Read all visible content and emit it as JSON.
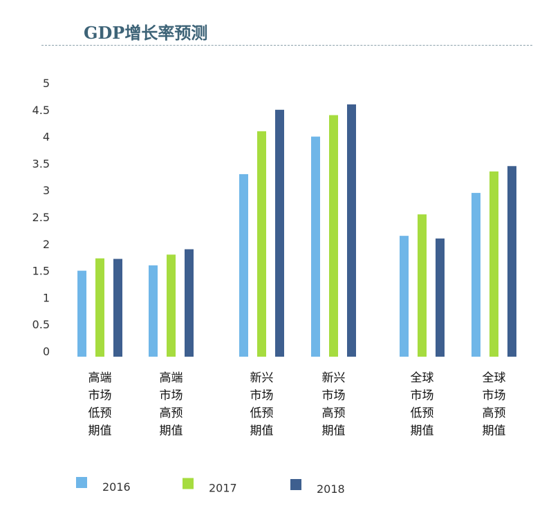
{
  "chart_data": {
    "type": "bar",
    "title": "GDP增长率预测",
    "categories": [
      [
        "高端",
        "市场",
        "低预",
        "期值"
      ],
      [
        "高端",
        "市场",
        "高预",
        "期值"
      ],
      [
        "新兴",
        "市场",
        "低预",
        "期值"
      ],
      [
        "新兴",
        "市场",
        "高预",
        "期值"
      ],
      [
        "全球",
        "市场",
        "低预",
        "期值"
      ],
      [
        "全球",
        "市场",
        "高预",
        "期值"
      ]
    ],
    "series": [
      {
        "name": "2016",
        "color": "#6fb6e8",
        "values": [
          1.5,
          1.6,
          3.3,
          4.0,
          2.15,
          2.95
        ]
      },
      {
        "name": "2017",
        "color": "#a6dc3f",
        "values": [
          1.73,
          1.8,
          4.1,
          4.4,
          2.55,
          3.35
        ]
      },
      {
        "name": "2018",
        "color": "#3e5f8f",
        "values": [
          1.72,
          1.9,
          4.5,
          4.6,
          2.1,
          3.45
        ]
      }
    ],
    "yticks": [
      "0",
      "0.5",
      "1",
      "1.5",
      "2",
      "2.5",
      "3",
      "3.5",
      "4",
      "4.5",
      "5"
    ],
    "ylim": [
      0,
      5
    ],
    "grid": false,
    "legend": "bottom-left",
    "xlabel": "",
    "ylabel": ""
  }
}
